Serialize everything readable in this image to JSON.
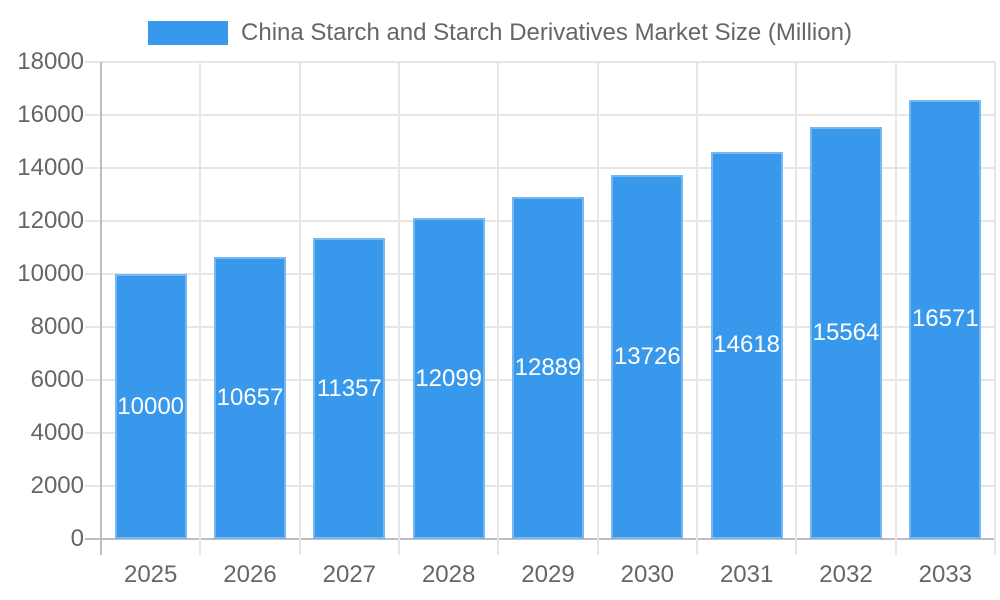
{
  "legend": {
    "label": "China Starch and Starch Derivatives Market Size (Million)"
  },
  "chart_data": {
    "type": "bar",
    "title": "China Starch and Starch Derivatives Market Size (Million)",
    "categories": [
      "2025",
      "2026",
      "2027",
      "2028",
      "2029",
      "2030",
      "2031",
      "2032",
      "2033"
    ],
    "values": [
      10000,
      10657,
      11357,
      12099,
      12889,
      13726,
      14618,
      15564,
      16571
    ],
    "xlabel": "",
    "ylabel": "",
    "ylim": [
      0,
      18000
    ],
    "yticks": [
      0,
      2000,
      4000,
      6000,
      8000,
      10000,
      12000,
      14000,
      16000,
      18000
    ],
    "grid": true,
    "grid_offset_vertical_lines": true,
    "legend_position": "top",
    "value_labels_position": "center",
    "colors": {
      "bar": "#3899ec",
      "bar_border": "#77b7f1",
      "grid": "#e6e6e6",
      "axis": "#bdbdbd",
      "tick_text": "#666666",
      "value_label": "#ffffff",
      "background": "#ffffff"
    }
  }
}
